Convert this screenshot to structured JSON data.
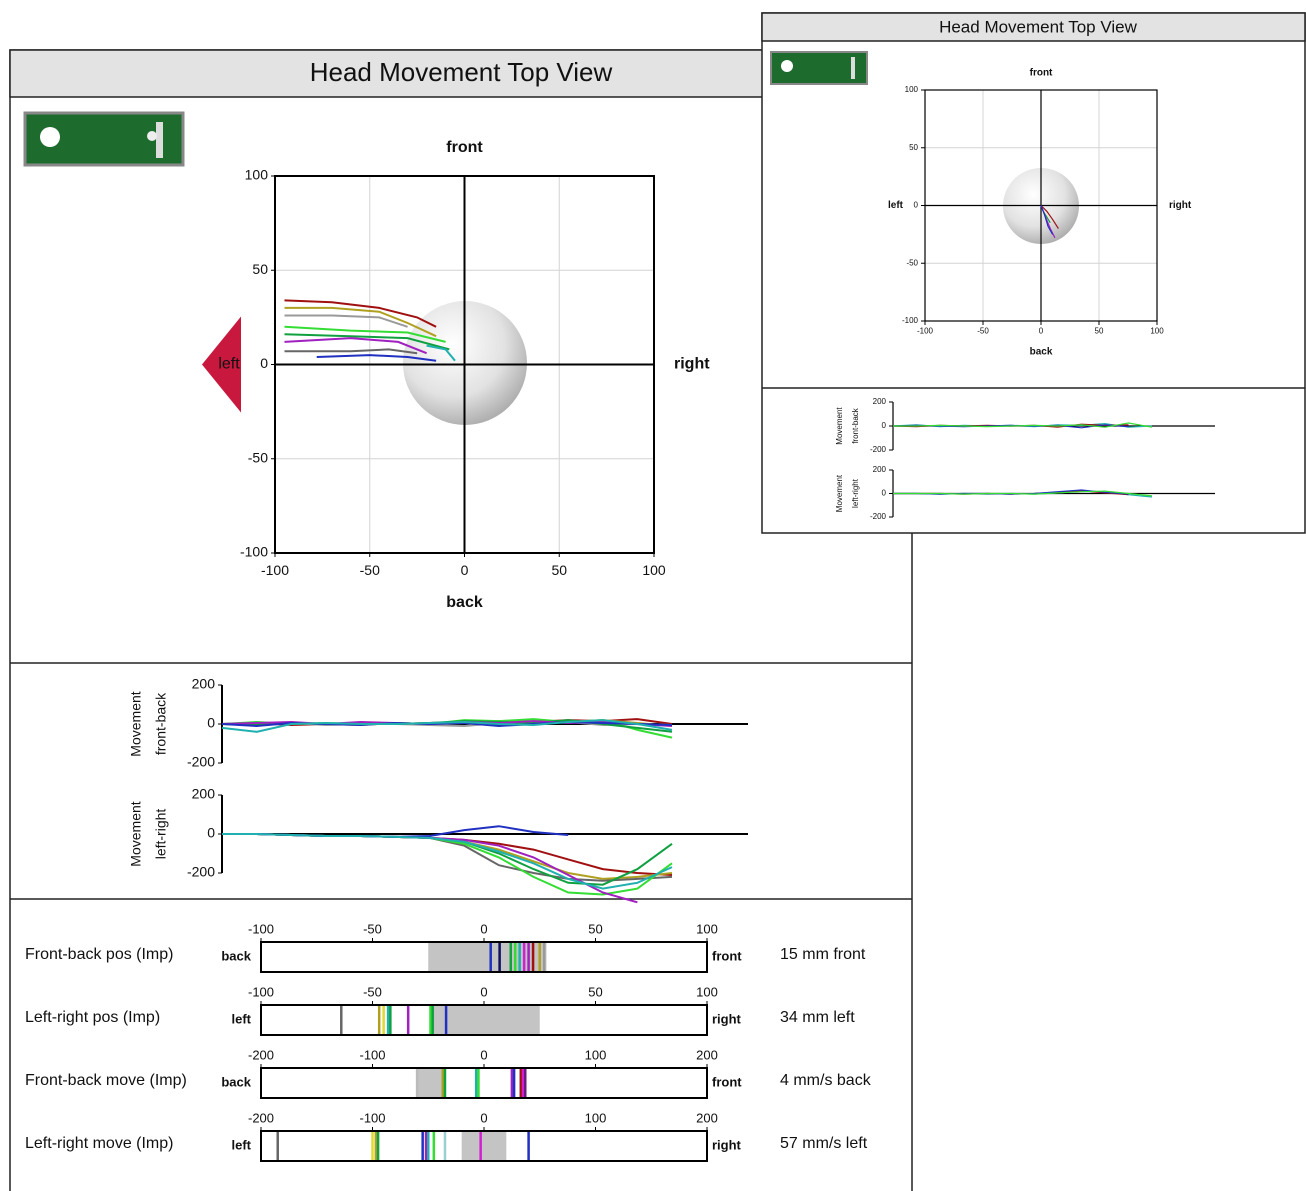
{
  "chart_data": [
    {
      "type": "line",
      "title": "Head Movement Top View",
      "label_top": "front",
      "label_bottom": "back",
      "label_left": "left",
      "label_right": "right",
      "xlim": [
        -100,
        100
      ],
      "ylim": [
        -100,
        100
      ],
      "xticks": [
        -100,
        -50,
        0,
        50,
        100
      ],
      "yticks": [
        -100,
        -50,
        0,
        50,
        100
      ],
      "grid": true,
      "series": [
        {
          "color": "#a01010",
          "x": [
            -95,
            -70,
            -45,
            -25,
            -15
          ],
          "values": [
            34,
            33,
            30,
            25,
            20
          ]
        },
        {
          "color": "#b0a020",
          "x": [
            -95,
            -70,
            -45,
            -30,
            -15
          ],
          "values": [
            30,
            30,
            28,
            22,
            15
          ]
        },
        {
          "color": "#9a9a9a",
          "x": [
            -95,
            -70,
            -45,
            -30
          ],
          "values": [
            26,
            26,
            25,
            20
          ]
        },
        {
          "color": "#33dd33",
          "x": [
            -95,
            -60,
            -30,
            -10
          ],
          "values": [
            20,
            18,
            17,
            12
          ]
        },
        {
          "color": "#10a040",
          "x": [
            -95,
            -60,
            -30,
            -8
          ],
          "values": [
            16,
            15,
            14,
            8
          ]
        },
        {
          "color": "#a020c0",
          "x": [
            -95,
            -60,
            -35,
            -20
          ],
          "values": [
            12,
            14,
            12,
            6
          ]
        },
        {
          "color": "#666666",
          "x": [
            -95,
            -60,
            -40,
            -25
          ],
          "values": [
            7,
            7,
            8,
            6
          ]
        },
        {
          "color": "#2030c0",
          "x": [
            -78,
            -50,
            -30,
            -15
          ],
          "values": [
            4,
            5,
            4,
            2
          ]
        },
        {
          "color": "#20b0b0",
          "x": [
            -20,
            -10,
            -5
          ],
          "values": [
            10,
            8,
            2
          ]
        }
      ]
    },
    {
      "type": "line",
      "ylabel": [
        "Movement",
        "front-back"
      ],
      "ylim": [
        -200,
        200
      ],
      "yticks": [
        -200,
        0,
        200
      ],
      "series": [
        {
          "color": "#a01010",
          "values": [
            0,
            5,
            -5,
            0,
            5,
            0,
            5,
            10,
            15,
            10,
            20,
            15,
            25,
            0
          ]
        },
        {
          "color": "#b0a020",
          "values": [
            0,
            -5,
            5,
            0,
            -5,
            5,
            0,
            10,
            5,
            15,
            10,
            20,
            5,
            -10
          ]
        },
        {
          "color": "#9a9a9a",
          "values": [
            0,
            0,
            5,
            -5,
            0,
            0,
            -5,
            -10,
            5,
            0,
            10,
            -5,
            0,
            -5
          ]
        },
        {
          "color": "#33dd33",
          "values": [
            0,
            10,
            0,
            5,
            0,
            5,
            0,
            20,
            15,
            25,
            10,
            20,
            -30,
            -70
          ]
        },
        {
          "color": "#10a040",
          "values": [
            0,
            -5,
            5,
            0,
            5,
            0,
            5,
            15,
            10,
            5,
            20,
            0,
            -20,
            -40
          ]
        },
        {
          "color": "#a020c0",
          "values": [
            0,
            5,
            10,
            0,
            10,
            5,
            0,
            10,
            5,
            15,
            5,
            10,
            0,
            -10
          ]
        },
        {
          "color": "#2030c0",
          "values": [
            0,
            -10,
            5,
            0,
            -5,
            5,
            0,
            5,
            -10,
            0,
            10,
            5,
            0,
            -5
          ]
        },
        {
          "color": "#20b0b0",
          "values": [
            -20,
            -40,
            0,
            5,
            0,
            0,
            5,
            10,
            0,
            -5,
            10,
            20,
            0,
            -30
          ]
        }
      ]
    },
    {
      "type": "line",
      "ylabel": [
        "Movement",
        "left-right"
      ],
      "ylim": [
        -200,
        200
      ],
      "yticks": [
        -200,
        0,
        200
      ],
      "series": [
        {
          "color": "#a01010",
          "values": [
            0,
            0,
            -5,
            -10,
            -10,
            -15,
            -20,
            -30,
            -50,
            -80,
            -130,
            -180,
            -200,
            -210
          ]
        },
        {
          "color": "#b0a020",
          "values": [
            0,
            0,
            -5,
            -10,
            -10,
            -15,
            -20,
            -40,
            -80,
            -140,
            -200,
            -230,
            -220,
            -200
          ]
        },
        {
          "color": "#666666",
          "values": [
            0,
            0,
            -5,
            -10,
            -10,
            -15,
            -20,
            -60,
            -160,
            -200,
            -230,
            -240,
            -230,
            -220
          ]
        },
        {
          "color": "#33dd33",
          "values": [
            0,
            0,
            -5,
            -10,
            -10,
            -15,
            -20,
            -50,
            -120,
            -220,
            -300,
            -310,
            -280,
            -150
          ]
        },
        {
          "color": "#10a040",
          "values": [
            0,
            0,
            -5,
            -10,
            -10,
            -15,
            -20,
            -40,
            -100,
            -180,
            -250,
            -260,
            -180,
            -50
          ]
        },
        {
          "color": "#a020c0",
          "values": [
            0,
            0,
            -5,
            -10,
            -10,
            -15,
            -20,
            -30,
            -60,
            -120,
            -210,
            -300,
            -350,
            null
          ]
        },
        {
          "color": "#2030c0",
          "values": [
            0,
            0,
            -5,
            -10,
            -10,
            -15,
            -10,
            20,
            40,
            10,
            -5,
            null,
            null,
            null
          ]
        },
        {
          "color": "#20b0b0",
          "values": [
            0,
            0,
            -5,
            -10,
            -10,
            -15,
            -20,
            -40,
            -90,
            -150,
            -230,
            -280,
            -250,
            -170
          ]
        }
      ]
    },
    {
      "type": "strip",
      "title": "Front-back pos (Imp)",
      "left_label": "back",
      "right_label": "front",
      "result": "15 mm front",
      "xlim": [
        -100,
        100
      ],
      "xticks": [
        -100,
        -50,
        0,
        50,
        100
      ],
      "band": [
        -25,
        28
      ],
      "values": [
        3,
        7,
        12,
        14,
        16,
        18,
        20,
        22,
        25,
        27
      ],
      "colors": [
        "#2030c0",
        "#101060",
        "#10a040",
        "#33dd33",
        "#20b0b0",
        "#d020d0",
        "#a020c0",
        "#a01010",
        "#b0a020",
        "#9a9a9a"
      ]
    },
    {
      "type": "strip",
      "title": "Left-right pos (Imp)",
      "left_label": "left",
      "right_label": "right",
      "result": "34 mm left",
      "xlim": [
        -100,
        100
      ],
      "xticks": [
        -100,
        -50,
        0,
        50,
        100
      ],
      "band": [
        -24,
        25
      ],
      "values": [
        -64,
        -47,
        -45,
        -43,
        -42,
        -34,
        -24,
        -23,
        -17
      ],
      "colors": [
        "#666666",
        "#b0a020",
        "#dddd30",
        "#20b0b0",
        "#10a040",
        "#a020c0",
        "#33dd33",
        "#10a040",
        "#2030c0"
      ]
    },
    {
      "type": "strip",
      "title": "Front-back move (Imp)",
      "left_label": "back",
      "right_label": "front",
      "result": "4 mm/s back",
      "xlim": [
        -200,
        200
      ],
      "xticks": [
        -200,
        -100,
        0,
        100,
        200
      ],
      "band": [
        -60,
        -35
      ],
      "values": [
        -60,
        -37,
        -35,
        -7,
        -5,
        25,
        27,
        33,
        35,
        37
      ],
      "colors": [
        "#bbbbbb",
        "#b0a020",
        "#10a040",
        "#20b0b0",
        "#33dd33",
        "#a020c0",
        "#2030c0",
        "#a01010",
        "#d020d0",
        "#6a1a80"
      ]
    },
    {
      "type": "strip",
      "title": "Left-right move (Imp)",
      "left_label": "left",
      "right_label": "right",
      "result": "57 mm/s left",
      "xlim": [
        -200,
        200
      ],
      "xticks": [
        -200,
        -100,
        0,
        100,
        200
      ],
      "band": [
        -20,
        20
      ],
      "values": [
        -185,
        -100,
        -97,
        -95,
        -55,
        -52,
        -50,
        -45,
        -35,
        -3,
        40
      ],
      "colors": [
        "#666666",
        "#dddd30",
        "#b0a020",
        "#10a040",
        "#2030c0",
        "#a020c0",
        "#20b0b0",
        "#33dd33",
        "#9ad0d0",
        "#d020d0",
        "#2030c0"
      ]
    },
    {
      "type": "line",
      "title": "Head Movement Top View",
      "label_top": "front",
      "label_bottom": "back",
      "label_left": "left",
      "label_right": "right",
      "xlim": [
        -100,
        100
      ],
      "ylim": [
        -100,
        100
      ],
      "xticks": [
        -100,
        -50,
        0,
        50,
        100
      ],
      "yticks": [
        -100,
        -50,
        0,
        50,
        100
      ],
      "grid": true,
      "series": [
        {
          "color": "#10a040",
          "x": [
            0,
            2,
            5,
            8
          ],
          "values": [
            0,
            -5,
            -10,
            -15
          ]
        },
        {
          "color": "#a01010",
          "x": [
            0,
            5,
            10,
            15
          ],
          "values": [
            0,
            -5,
            -12,
            -20
          ]
        },
        {
          "color": "#a020c0",
          "x": [
            0,
            4,
            8,
            12
          ],
          "values": [
            0,
            -10,
            -20,
            -28
          ]
        },
        {
          "color": "#2030c0",
          "x": [
            0,
            3,
            6,
            10
          ],
          "values": [
            0,
            -8,
            -18,
            -25
          ]
        }
      ]
    },
    {
      "type": "line",
      "ylabel": [
        "Movement",
        "front-back"
      ],
      "ylim": [
        -200,
        200
      ],
      "yticks": [
        -200,
        0,
        200
      ],
      "series": [
        {
          "color": "#20b0b0",
          "values": [
            0,
            10,
            -5,
            5,
            0,
            5,
            -5,
            10,
            5,
            20,
            -10,
            0
          ]
        },
        {
          "color": "#a01010",
          "values": [
            0,
            -5,
            5,
            0,
            5,
            0,
            5,
            -10,
            15,
            5,
            10,
            null
          ]
        },
        {
          "color": "#2030c0",
          "values": [
            0,
            5,
            0,
            -5,
            0,
            5,
            0,
            5,
            -15,
            10,
            -5,
            null
          ]
        },
        {
          "color": "#33dd33",
          "values": [
            0,
            0,
            5,
            0,
            -5,
            0,
            5,
            0,
            10,
            -10,
            25,
            -10
          ]
        }
      ]
    },
    {
      "type": "line",
      "ylabel": [
        "Movement",
        "left-right"
      ],
      "ylim": [
        -200,
        200
      ],
      "yticks": [
        -200,
        0,
        200
      ],
      "series": [
        {
          "color": "#20b0b0",
          "values": [
            0,
            0,
            -5,
            0,
            -5,
            0,
            -5,
            5,
            20,
            10,
            -10,
            -30
          ]
        },
        {
          "color": "#a01010",
          "values": [
            0,
            0,
            0,
            -5,
            0,
            -5,
            0,
            10,
            25,
            5,
            -10,
            null
          ]
        },
        {
          "color": "#2030c0",
          "values": [
            0,
            0,
            -5,
            0,
            0,
            -5,
            0,
            15,
            30,
            10,
            -5,
            null
          ]
        },
        {
          "color": "#33dd33",
          "values": [
            0,
            0,
            0,
            -5,
            0,
            0,
            -5,
            5,
            15,
            20,
            0,
            -20
          ]
        }
      ]
    }
  ]
}
